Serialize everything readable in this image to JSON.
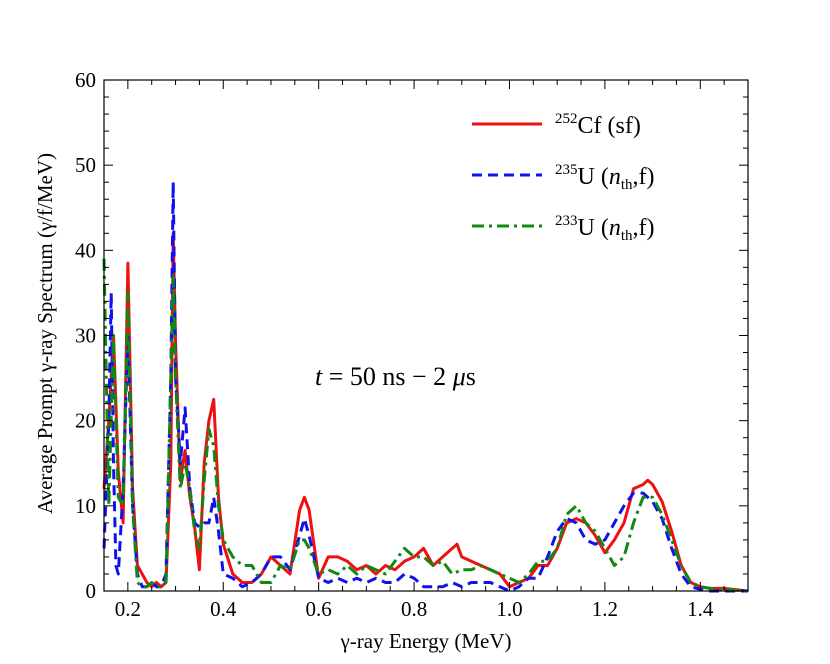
{
  "chart_data": {
    "type": "line",
    "title": "",
    "xlabel": "γ-ray Energy (MeV)",
    "ylabel": "Average Prompt γ-ray Spectrum (γ/f/MeV)",
    "xlim": [
      0.15,
      1.5
    ],
    "ylim": [
      0,
      60
    ],
    "xticks": [
      0.2,
      0.4,
      0.6,
      0.8,
      1.0,
      1.2,
      1.4
    ],
    "xtick_labels": [
      "0.2",
      "0.4",
      "0.6",
      "0.8",
      "1.0",
      "1.2",
      "1.4"
    ],
    "yticks": [
      0,
      10,
      20,
      30,
      40,
      50,
      60
    ],
    "ytick_labels": [
      "0",
      "10",
      "20",
      "30",
      "40",
      "50",
      "60"
    ],
    "annotation": {
      "t": "t",
      "eq": " = 50 ns − 2 ",
      "mu": "μ",
      "s": "s"
    },
    "legend": {
      "position": "top-right",
      "entries": [
        {
          "sup": "252",
          "main": "Cf (sf)",
          "sub": "",
          "tail": ""
        },
        {
          "sup": "235",
          "main": "U (",
          "italic": "n",
          "sub": "th",
          "tail": ",f)"
        },
        {
          "sup": "233",
          "main": "U (",
          "italic": "n",
          "sub": "th",
          "tail": ",f)"
        }
      ]
    },
    "series": [
      {
        "name": "252Cf (sf)",
        "color": "#ee1111",
        "style": "solid",
        "x": [
          0.15,
          0.16,
          0.17,
          0.18,
          0.19,
          0.2,
          0.21,
          0.22,
          0.23,
          0.24,
          0.25,
          0.26,
          0.27,
          0.28,
          0.29,
          0.295,
          0.3,
          0.31,
          0.32,
          0.33,
          0.34,
          0.35,
          0.36,
          0.37,
          0.38,
          0.39,
          0.4,
          0.42,
          0.44,
          0.46,
          0.48,
          0.5,
          0.52,
          0.54,
          0.56,
          0.57,
          0.58,
          0.6,
          0.62,
          0.64,
          0.66,
          0.68,
          0.7,
          0.72,
          0.74,
          0.76,
          0.78,
          0.8,
          0.82,
          0.84,
          0.86,
          0.88,
          0.89,
          0.9,
          0.92,
          0.94,
          0.96,
          0.98,
          1.0,
          1.02,
          1.04,
          1.06,
          1.08,
          1.1,
          1.12,
          1.14,
          1.16,
          1.18,
          1.2,
          1.22,
          1.24,
          1.26,
          1.28,
          1.29,
          1.3,
          1.32,
          1.34,
          1.36,
          1.38,
          1.4,
          1.42,
          1.45,
          1.5
        ],
        "values": [
          12,
          20,
          30,
          14,
          8,
          38.5,
          12,
          3,
          2,
          1,
          0.5,
          1,
          0.5,
          1,
          15,
          42,
          29,
          13,
          16.5,
          11,
          7.5,
          2.5,
          15,
          20,
          22.5,
          11,
          5.5,
          2,
          1,
          1,
          2,
          4,
          3,
          2,
          9.5,
          11,
          9.5,
          1.5,
          4,
          4,
          3.5,
          2.5,
          3,
          2,
          3,
          2.5,
          3.5,
          4,
          5,
          3,
          4,
          5,
          5.5,
          4,
          3.5,
          3,
          2.5,
          2,
          0.5,
          1,
          1.5,
          3,
          3,
          5,
          8,
          8.5,
          8,
          6.5,
          4.5,
          6,
          8,
          12,
          12.5,
          13,
          12.5,
          10.5,
          7,
          3,
          1,
          0.5,
          0.3,
          0.3,
          0
        ]
      },
      {
        "name": "235U (nth,f)",
        "color": "#1111ee",
        "style": "dashed",
        "x": [
          0.15,
          0.16,
          0.165,
          0.17,
          0.175,
          0.18,
          0.19,
          0.2,
          0.21,
          0.22,
          0.23,
          0.24,
          0.25,
          0.26,
          0.27,
          0.28,
          0.29,
          0.295,
          0.3,
          0.31,
          0.32,
          0.33,
          0.34,
          0.35,
          0.36,
          0.37,
          0.38,
          0.39,
          0.4,
          0.42,
          0.44,
          0.46,
          0.48,
          0.5,
          0.52,
          0.54,
          0.56,
          0.57,
          0.58,
          0.6,
          0.62,
          0.64,
          0.66,
          0.68,
          0.7,
          0.72,
          0.74,
          0.76,
          0.78,
          0.8,
          0.82,
          0.84,
          0.86,
          0.88,
          0.9,
          0.92,
          0.94,
          0.96,
          0.98,
          1.0,
          1.02,
          1.04,
          1.06,
          1.08,
          1.1,
          1.12,
          1.14,
          1.16,
          1.18,
          1.2,
          1.22,
          1.24,
          1.26,
          1.28,
          1.3,
          1.32,
          1.34,
          1.36,
          1.38,
          1.4,
          1.42,
          1.45,
          1.5
        ],
        "values": [
          5,
          20,
          35,
          15,
          3,
          2,
          12,
          30,
          10,
          2,
          0.5,
          0.5,
          1,
          0.5,
          0.5,
          2,
          25,
          48,
          25,
          15,
          21.5,
          12,
          8,
          7.5,
          8,
          8,
          11,
          7,
          2,
          1.5,
          0.5,
          1,
          2,
          4,
          4,
          2.5,
          6.5,
          8.5,
          6.5,
          1.5,
          1,
          1.5,
          1,
          1.5,
          1,
          1.5,
          1,
          1,
          2,
          1.5,
          0.5,
          0.5,
          0.5,
          1,
          0.5,
          1,
          1,
          1,
          0.5,
          0,
          0.5,
          1.5,
          1.5,
          4,
          7,
          8.5,
          8,
          6,
          5.5,
          6,
          8,
          10,
          11.5,
          11.5,
          10.5,
          8.5,
          5,
          2,
          0.5,
          0.2,
          0,
          0,
          0
        ]
      },
      {
        "name": "233U (nth,f)",
        "color": "#118811",
        "style": "dashdot",
        "x": [
          0.15,
          0.16,
          0.17,
          0.18,
          0.19,
          0.2,
          0.21,
          0.22,
          0.23,
          0.24,
          0.25,
          0.26,
          0.27,
          0.28,
          0.29,
          0.295,
          0.3,
          0.31,
          0.32,
          0.33,
          0.34,
          0.35,
          0.36,
          0.37,
          0.38,
          0.39,
          0.4,
          0.42,
          0.44,
          0.46,
          0.48,
          0.5,
          0.52,
          0.54,
          0.56,
          0.57,
          0.58,
          0.6,
          0.62,
          0.64,
          0.66,
          0.68,
          0.7,
          0.72,
          0.74,
          0.76,
          0.78,
          0.8,
          0.82,
          0.84,
          0.86,
          0.88,
          0.9,
          0.92,
          0.94,
          0.96,
          0.98,
          1.0,
          1.02,
          1.04,
          1.06,
          1.08,
          1.1,
          1.12,
          1.14,
          1.16,
          1.18,
          1.2,
          1.22,
          1.24,
          1.26,
          1.28,
          1.3,
          1.32,
          1.34,
          1.36,
          1.38,
          1.4,
          1.42,
          1.45,
          1.5
        ],
        "values": [
          39,
          10,
          30,
          11,
          10,
          35,
          10,
          1,
          0.5,
          0.5,
          1,
          0.5,
          0.5,
          1,
          25,
          37,
          25,
          12,
          15,
          12,
          7,
          5,
          13,
          19,
          17,
          10,
          6,
          4,
          3,
          3,
          1,
          1,
          3,
          2.5,
          6,
          6,
          5,
          2,
          2.5,
          2,
          3,
          2,
          3,
          2.5,
          2,
          3.5,
          5,
          4,
          4,
          3,
          3.5,
          2,
          2.5,
          2.5,
          3,
          2.5,
          2,
          1.5,
          1,
          2,
          3.5,
          3.5,
          5,
          9,
          10,
          8,
          7,
          5,
          3,
          4,
          8,
          11,
          11,
          9,
          6,
          3,
          1,
          0.5,
          0.3,
          0.2,
          0
        ]
      }
    ]
  }
}
